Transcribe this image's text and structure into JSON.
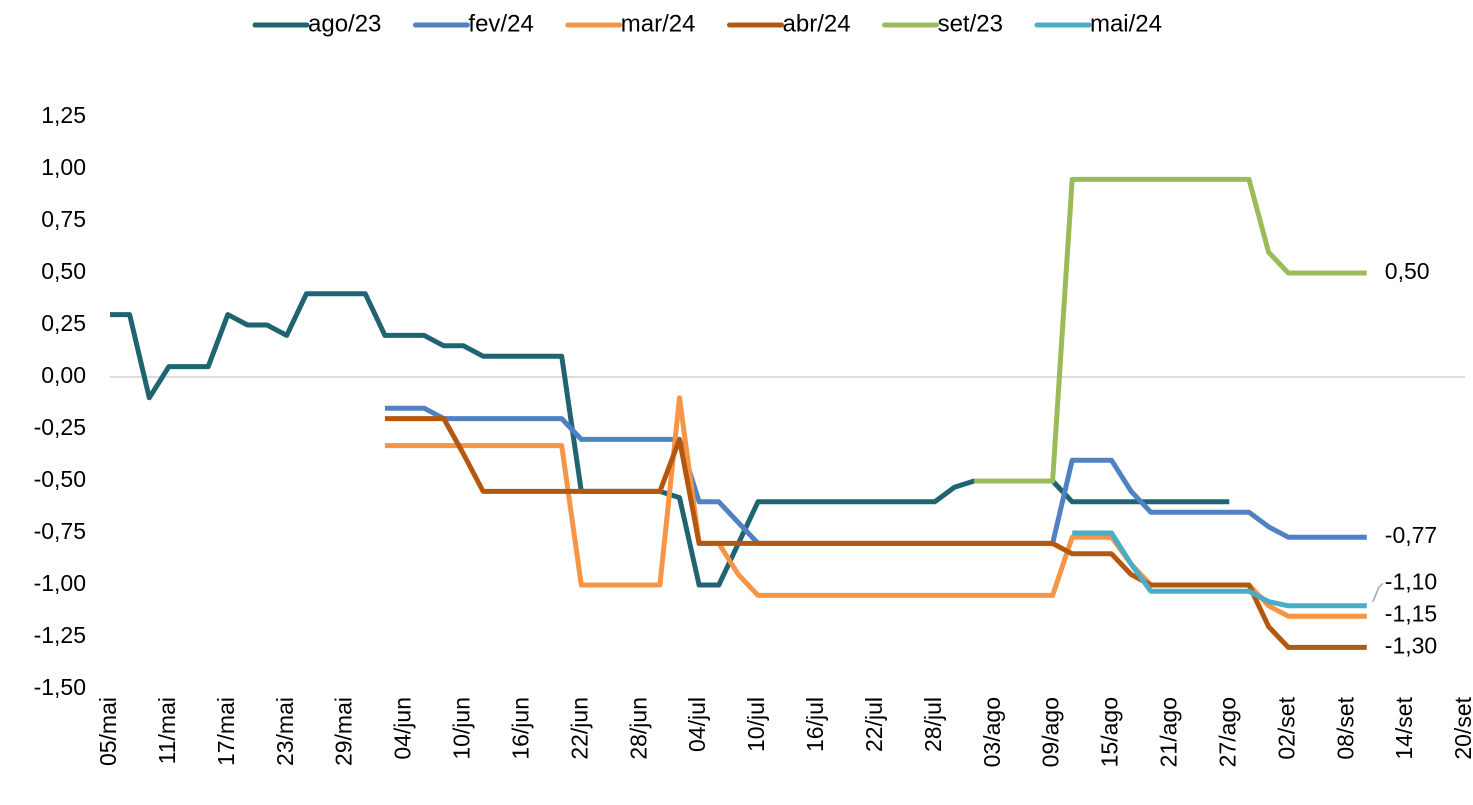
{
  "chart_data": {
    "type": "line",
    "categories": [
      "05/mai",
      null,
      null,
      "11/mai",
      null,
      null,
      "17/mai",
      null,
      null,
      "23/mai",
      null,
      null,
      "29/mai",
      null,
      null,
      "04/jun",
      null,
      null,
      "10/jun",
      null,
      null,
      "16/jun",
      null,
      null,
      "22/jun",
      null,
      null,
      "28/jun",
      null,
      null,
      "04/jul",
      null,
      null,
      "10/jul",
      null,
      null,
      "16/jul",
      null,
      null,
      "22/jul",
      null,
      null,
      "28/jul",
      null,
      null,
      "03/ago",
      null,
      null,
      "09/ago",
      null,
      null,
      "15/ago",
      null,
      null,
      "21/ago",
      null,
      null,
      "27/ago",
      null,
      null,
      "02/set",
      null,
      null,
      "08/set",
      null,
      null,
      "14/set",
      null,
      null,
      "20/set"
    ],
    "ylim": [
      -1.5,
      1.25
    ],
    "yticks": [
      {
        "value": -1.5,
        "label": "-1,50"
      },
      {
        "value": -1.25,
        "label": "-1,25"
      },
      {
        "value": -1,
        "label": "-1,00"
      },
      {
        "value": -0.75,
        "label": "-0,75"
      },
      {
        "value": -0.5,
        "label": "-0,50"
      },
      {
        "value": -0.25,
        "label": "-0,25"
      },
      {
        "value": 0,
        "label": "0,00"
      },
      {
        "value": 0.25,
        "label": "0,25"
      },
      {
        "value": 0.5,
        "label": "0,50"
      },
      {
        "value": 0.75,
        "label": "0,75"
      },
      {
        "value": 1,
        "label": "1,00"
      },
      {
        "value": 1.25,
        "label": "1,25"
      }
    ],
    "legend": "top",
    "series": [
      {
        "name": "ago/23",
        "color": "#1f6470",
        "values": [
          0.3,
          0.3,
          -0.1,
          0.05,
          0.05,
          0.05,
          0.3,
          0.25,
          0.25,
          0.2,
          0.4,
          0.4,
          0.4,
          0.4,
          0.2,
          0.2,
          0.2,
          0.15,
          0.15,
          0.1,
          0.1,
          0.1,
          0.1,
          0.1,
          -0.55,
          -0.55,
          -0.55,
          -0.55,
          -0.55,
          -0.58,
          -1,
          -1,
          -0.8,
          -0.6,
          -0.6,
          -0.6,
          -0.6,
          -0.6,
          -0.6,
          -0.6,
          -0.6,
          -0.6,
          -0.6,
          -0.53,
          -0.5,
          -0.5,
          -0.5,
          -0.5,
          -0.5,
          -0.6,
          -0.6,
          -0.6,
          -0.6,
          -0.6,
          -0.6,
          -0.6,
          -0.6,
          -0.6,
          null,
          null,
          null,
          null,
          null,
          null,
          null,
          null,
          null,
          null,
          null,
          null
        ]
      },
      {
        "name": "fev/24",
        "color": "#5081c3",
        "values": [
          null,
          null,
          null,
          null,
          null,
          null,
          null,
          null,
          null,
          null,
          null,
          null,
          null,
          null,
          -0.15,
          -0.15,
          -0.15,
          -0.2,
          -0.2,
          -0.2,
          -0.2,
          -0.2,
          -0.2,
          -0.2,
          -0.3,
          -0.3,
          -0.3,
          -0.3,
          -0.3,
          -0.3,
          -0.6,
          -0.6,
          -0.7,
          -0.8,
          -0.8,
          -0.8,
          -0.8,
          -0.8,
          -0.8,
          -0.8,
          -0.8,
          -0.8,
          -0.8,
          -0.8,
          -0.8,
          -0.8,
          -0.8,
          -0.8,
          -0.8,
          -0.4,
          -0.4,
          -0.4,
          -0.55,
          -0.65,
          -0.65,
          -0.65,
          -0.65,
          -0.65,
          -0.65,
          -0.72,
          -0.77,
          -0.77,
          -0.77,
          -0.77,
          -0.77,
          null,
          null,
          null,
          null,
          null
        ],
        "value_labels": [
          null,
          null,
          null,
          null,
          null,
          null,
          null,
          null,
          null,
          null,
          null,
          null,
          null,
          null,
          null,
          null,
          null,
          null,
          null,
          null,
          null,
          null,
          null,
          null,
          null,
          null,
          null,
          null,
          null,
          null,
          null,
          null,
          null,
          null,
          null,
          null,
          null,
          null,
          null,
          null,
          null,
          null,
          null,
          null,
          null,
          null,
          null,
          null,
          null,
          null,
          null,
          null,
          null,
          null,
          null,
          null,
          null,
          null,
          null,
          null,
          null,
          null,
          null,
          null,
          "-0,77",
          null,
          null,
          null,
          null,
          null
        ]
      },
      {
        "name": "mar/24",
        "color": "#f59545",
        "values": [
          null,
          null,
          null,
          null,
          null,
          null,
          null,
          null,
          null,
          null,
          null,
          null,
          null,
          null,
          -0.33,
          -0.33,
          -0.33,
          -0.33,
          -0.33,
          -0.33,
          -0.33,
          -0.33,
          -0.33,
          -0.33,
          -1,
          -1,
          -1,
          -1,
          -1,
          -0.1,
          -0.8,
          -0.8,
          -0.95,
          -1.05,
          -1.05,
          -1.05,
          -1.05,
          -1.05,
          -1.05,
          -1.05,
          -1.05,
          -1.05,
          -1.05,
          -1.05,
          -1.05,
          -1.05,
          -1.05,
          -1.05,
          -1.05,
          -0.77,
          -0.77,
          -0.77,
          -0.9,
          -1,
          -1,
          -1,
          -1,
          -1,
          -1,
          -1.1,
          -1.15,
          -1.15,
          -1.15,
          -1.15,
          -1.15,
          null,
          null,
          null,
          null,
          null
        ],
        "value_labels": [
          null,
          null,
          null,
          null,
          null,
          null,
          null,
          null,
          null,
          null,
          null,
          null,
          null,
          null,
          null,
          null,
          null,
          null,
          null,
          null,
          null,
          null,
          null,
          null,
          null,
          null,
          null,
          null,
          null,
          null,
          null,
          null,
          null,
          null,
          null,
          null,
          null,
          null,
          null,
          null,
          null,
          null,
          null,
          null,
          null,
          null,
          null,
          null,
          null,
          null,
          null,
          null,
          null,
          null,
          null,
          null,
          null,
          null,
          null,
          null,
          null,
          null,
          null,
          null,
          "-1,15",
          null,
          null,
          null,
          null,
          null
        ]
      },
      {
        "name": "abr/24",
        "color": "#b4580f",
        "values": [
          null,
          null,
          null,
          null,
          null,
          null,
          null,
          null,
          null,
          null,
          null,
          null,
          null,
          null,
          -0.2,
          -0.2,
          -0.2,
          -0.2,
          -0.37,
          -0.55,
          -0.55,
          -0.55,
          -0.55,
          -0.55,
          -0.55,
          -0.55,
          -0.55,
          -0.55,
          -0.55,
          -0.3,
          -0.8,
          -0.8,
          -0.8,
          -0.8,
          -0.8,
          -0.8,
          -0.8,
          -0.8,
          -0.8,
          -0.8,
          -0.8,
          -0.8,
          -0.8,
          -0.8,
          -0.8,
          -0.8,
          -0.8,
          -0.8,
          -0.8,
          -0.85,
          -0.85,
          -0.85,
          -0.95,
          -1,
          -1,
          -1,
          -1,
          -1,
          -1,
          -1.2,
          -1.3,
          -1.3,
          -1.3,
          -1.3,
          -1.3,
          null,
          null,
          null,
          null,
          null
        ],
        "value_labels": [
          null,
          null,
          null,
          null,
          null,
          null,
          null,
          null,
          null,
          null,
          null,
          null,
          null,
          null,
          null,
          null,
          null,
          null,
          null,
          null,
          null,
          null,
          null,
          null,
          null,
          null,
          null,
          null,
          null,
          null,
          null,
          null,
          null,
          null,
          null,
          null,
          null,
          null,
          null,
          null,
          null,
          null,
          null,
          null,
          null,
          null,
          null,
          null,
          null,
          null,
          null,
          null,
          null,
          null,
          null,
          null,
          null,
          null,
          null,
          null,
          null,
          null,
          null,
          null,
          "-1,30",
          null,
          null,
          null,
          null,
          null
        ]
      },
      {
        "name": "set/23",
        "color": "#9bbb59",
        "values": [
          null,
          null,
          null,
          null,
          null,
          null,
          null,
          null,
          null,
          null,
          null,
          null,
          null,
          null,
          null,
          null,
          null,
          null,
          null,
          null,
          null,
          null,
          null,
          null,
          null,
          null,
          null,
          null,
          null,
          null,
          null,
          null,
          null,
          null,
          null,
          null,
          null,
          null,
          null,
          null,
          null,
          null,
          null,
          null,
          -0.5,
          -0.5,
          -0.5,
          -0.5,
          -0.5,
          0.95,
          0.95,
          0.95,
          0.95,
          0.95,
          0.95,
          0.95,
          0.95,
          0.95,
          0.95,
          0.6,
          0.5,
          0.5,
          0.5,
          0.5,
          0.5,
          null,
          null,
          null,
          null,
          null
        ],
        "value_labels": [
          null,
          null,
          null,
          null,
          null,
          null,
          null,
          null,
          null,
          null,
          null,
          null,
          null,
          null,
          null,
          null,
          null,
          null,
          null,
          null,
          null,
          null,
          null,
          null,
          null,
          null,
          null,
          null,
          null,
          null,
          null,
          null,
          null,
          null,
          null,
          null,
          null,
          null,
          null,
          null,
          null,
          null,
          null,
          null,
          null,
          null,
          null,
          null,
          null,
          null,
          null,
          null,
          null,
          null,
          null,
          null,
          null,
          null,
          null,
          null,
          null,
          null,
          null,
          null,
          "0,50",
          null,
          null,
          null,
          null,
          null
        ]
      },
      {
        "name": "mai/24",
        "color": "#4bacc6",
        "values": [
          null,
          null,
          null,
          null,
          null,
          null,
          null,
          null,
          null,
          null,
          null,
          null,
          null,
          null,
          null,
          null,
          null,
          null,
          null,
          null,
          null,
          null,
          null,
          null,
          null,
          null,
          null,
          null,
          null,
          null,
          null,
          null,
          null,
          null,
          null,
          null,
          null,
          null,
          null,
          null,
          null,
          null,
          null,
          null,
          null,
          null,
          null,
          null,
          null,
          -0.75,
          -0.75,
          -0.75,
          -0.9,
          -1.03,
          -1.03,
          -1.03,
          -1.03,
          -1.03,
          -1.03,
          -1.08,
          -1.1,
          -1.1,
          -1.1,
          -1.1,
          -1.1,
          null,
          null,
          null,
          null,
          null
        ],
        "value_labels": [
          null,
          null,
          null,
          null,
          null,
          null,
          null,
          null,
          null,
          null,
          null,
          null,
          null,
          null,
          null,
          null,
          null,
          null,
          null,
          null,
          null,
          null,
          null,
          null,
          null,
          null,
          null,
          null,
          null,
          null,
          null,
          null,
          null,
          null,
          null,
          null,
          null,
          null,
          null,
          null,
          null,
          null,
          null,
          null,
          null,
          null,
          null,
          null,
          null,
          null,
          null,
          null,
          null,
          null,
          null,
          null,
          null,
          null,
          null,
          null,
          null,
          null,
          null,
          null,
          "-1,10",
          null,
          null,
          null,
          null,
          null
        ]
      }
    ]
  }
}
